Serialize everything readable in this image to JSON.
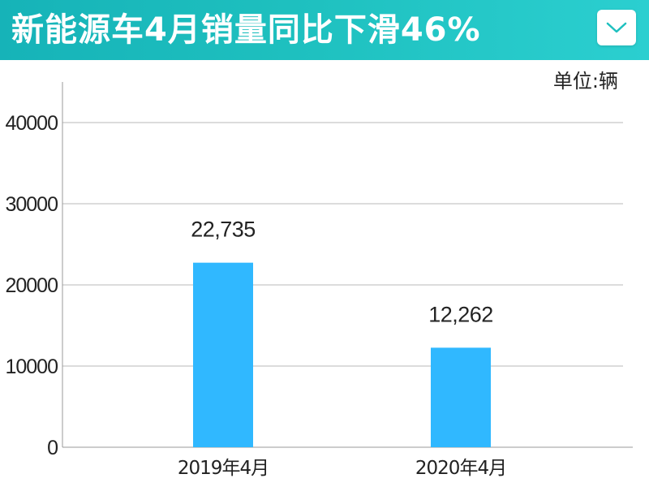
{
  "header": {
    "title": "新能源车4月销量同比下滑46%"
  },
  "unit_label": "单位:辆",
  "colors": {
    "header_start": "#16b3b8",
    "header_end": "#2bcfd0",
    "bar": "#30b8ff",
    "grid": "#b8b8b8"
  },
  "icons": {
    "dropdown": "chevron-down-icon"
  },
  "chart_data": {
    "type": "bar",
    "categories": [
      "2019年4月",
      "2020年4月"
    ],
    "values": [
      22735,
      12262
    ],
    "data_labels": [
      "22,735",
      "12,262"
    ],
    "title": "新能源车4月销量同比下滑46%",
    "xlabel": "",
    "ylabel": "",
    "unit": "单位:辆",
    "ylim": [
      0,
      45000
    ],
    "yticks": [
      0,
      10000,
      20000,
      30000,
      40000
    ],
    "ytick_labels": [
      "0",
      "10000",
      "20000",
      "30000",
      "40000"
    ],
    "grid": true,
    "legend": "none"
  }
}
